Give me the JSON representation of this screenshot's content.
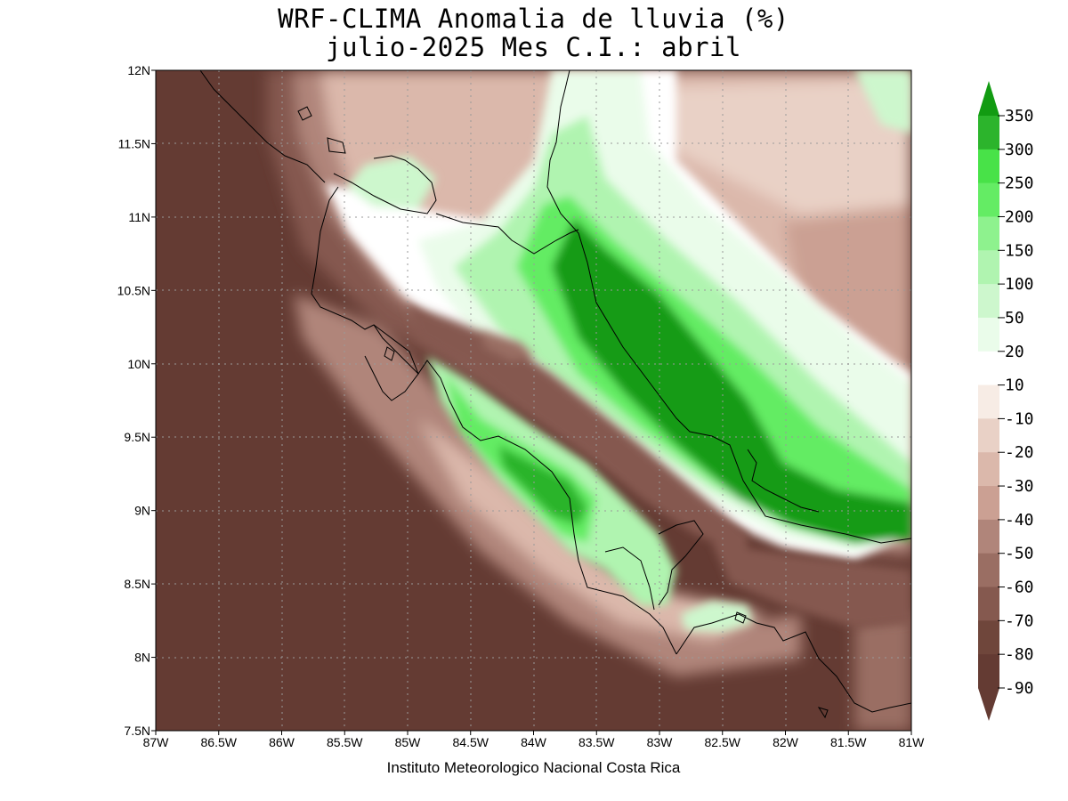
{
  "title": {
    "line1": "WRF-CLIMA Anomalia de lluvia (%)",
    "line2": "julio-2025 Mes C.I.: abril"
  },
  "credit": "Instituto Meteorologico Nacional Costa Rica",
  "axes": {
    "x_ticks": [
      "87W",
      "86.5W",
      "86W",
      "85.5W",
      "85W",
      "84.5W",
      "84W",
      "83.5W",
      "83W",
      "82.5W",
      "82W",
      "81.5W",
      "81W"
    ],
    "y_ticks": [
      "12N",
      "11.5N",
      "11N",
      "10.5N",
      "10N",
      "9.5N",
      "9N",
      "8.5N",
      "8N",
      "7.5N"
    ],
    "lon_range": [
      -87,
      -81
    ],
    "lat_range": [
      7.5,
      12
    ],
    "grid": true
  },
  "colorbar": {
    "labels": [
      "350",
      "300",
      "250",
      "200",
      "150",
      "100",
      "50",
      "20",
      "10",
      "-10",
      "-20",
      "-30",
      "-40",
      "-50",
      "-60",
      "-70",
      "-80",
      "-90"
    ],
    "colors": [
      "#129b12",
      "#2cb42c",
      "#48e248",
      "#64ec64",
      "#8ef28e",
      "#b0f4b0",
      "#cdf7cd",
      "#eafcea",
      "#ffffff",
      "#f7ece5",
      "#e9d1c6",
      "#dbb8ab",
      "#cba093",
      "#b0857a",
      "#9a6e63",
      "#85594f",
      "#6f463b",
      "#643b33"
    ]
  },
  "map_data": {
    "variable": "Anomalia de lluvia (%)",
    "colors": {
      "strong_dry": "#643b33",
      "dry_80": "#6f463b",
      "dry_70": "#85594f",
      "dry_60": "#9a6e63",
      "dry_50": "#b0857a",
      "dry_40": "#cba093",
      "dry_30": "#dbb8ab",
      "dry_20": "#e9d1c6",
      "dry_10": "#f7ece5",
      "neutral": "#ffffff",
      "wet_20": "#eafcea",
      "wet_50": "#cdf7cd",
      "wet_100": "#b0f4b0",
      "wet_150": "#8ef28e",
      "wet_200": "#64ec64",
      "wet_250": "#48e248",
      "wet_350": "#129b12"
    }
  }
}
